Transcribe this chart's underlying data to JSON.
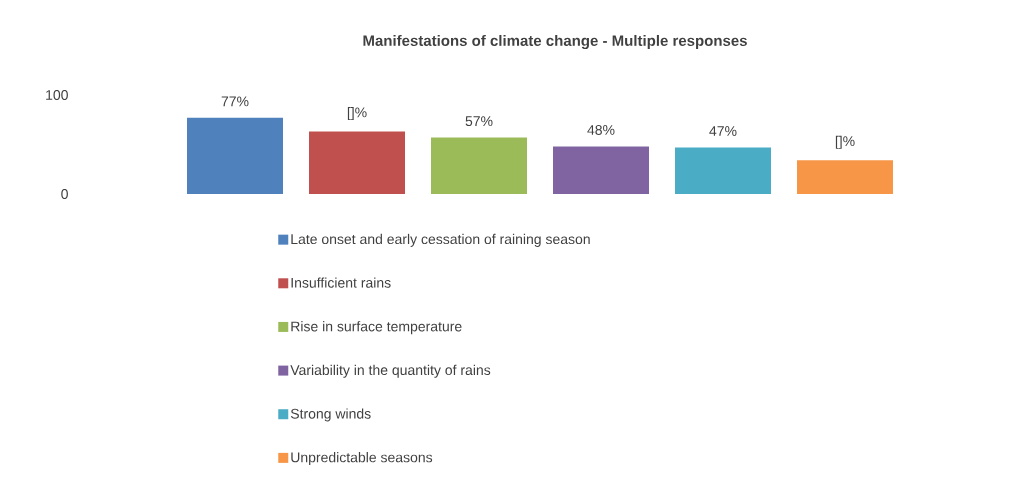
{
  "chart_data": {
    "type": "bar",
    "title": "Manifestations of climate change - Multiple responses",
    "categories": [
      null
    ],
    "series": [
      {
        "name": "Late onset and early cessation of raining season",
        "color": "#4f81bd",
        "values": [
          77
        ],
        "value_labels": [
          "77%"
        ]
      },
      {
        "name": "Insufficient rains",
        "color": "#c0504d",
        "values": [
          63
        ],
        "value_labels": [
          "[]%"
        ]
      },
      {
        "name": "Rise in surface temperature",
        "color": "#9bbb59",
        "values": [
          57
        ],
        "value_labels": [
          "57%"
        ]
      },
      {
        "name": "Variability in the quantity of rains",
        "color": "#8064a2",
        "values": [
          48
        ],
        "value_labels": [
          "48%"
        ]
      },
      {
        "name": "Strong winds",
        "color": "#4bacc6",
        "values": [
          47
        ],
        "value_labels": [
          "47%"
        ]
      },
      {
        "name": "Unpredictable seasons",
        "color": "#f79646",
        "values": [
          34
        ],
        "value_labels": [
          "[]%"
        ]
      }
    ],
    "ylim": [
      0,
      100
    ],
    "yticks": [
      0,
      100
    ],
    "legend": "bottom",
    "grid": false
  }
}
